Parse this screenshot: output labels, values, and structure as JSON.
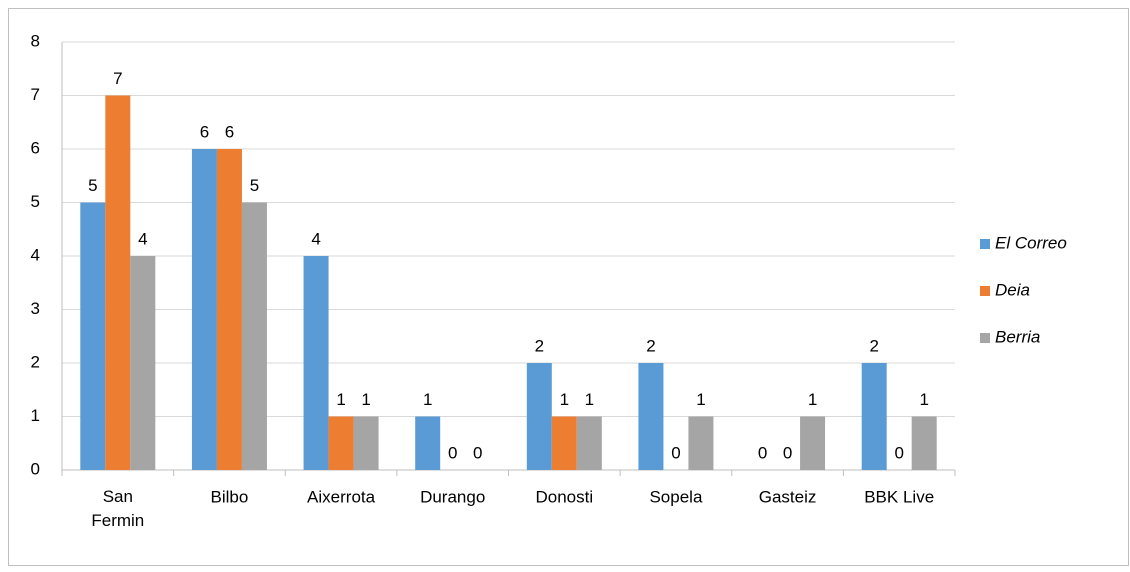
{
  "chart_data": {
    "type": "bar",
    "categories": [
      "San Fermin",
      "Bilbo",
      "Aixerrota",
      "Durango",
      "Donosti",
      "Sopela",
      "Gasteiz",
      "BBK Live"
    ],
    "series": [
      {
        "name": "El Correo",
        "color": "#5b9bd5",
        "values": [
          5,
          6,
          4,
          1,
          2,
          2,
          0,
          2
        ]
      },
      {
        "name": "Deia",
        "color": "#ed7d31",
        "values": [
          7,
          6,
          1,
          0,
          1,
          0,
          0,
          0
        ]
      },
      {
        "name": "Berria",
        "color": "#a5a5a5",
        "values": [
          4,
          5,
          1,
          0,
          1,
          1,
          1,
          1
        ]
      }
    ],
    "ylim": [
      0,
      8
    ],
    "yticks": [
      0,
      1,
      2,
      3,
      4,
      5,
      6,
      7,
      8
    ],
    "grid": true,
    "legend": "right"
  }
}
